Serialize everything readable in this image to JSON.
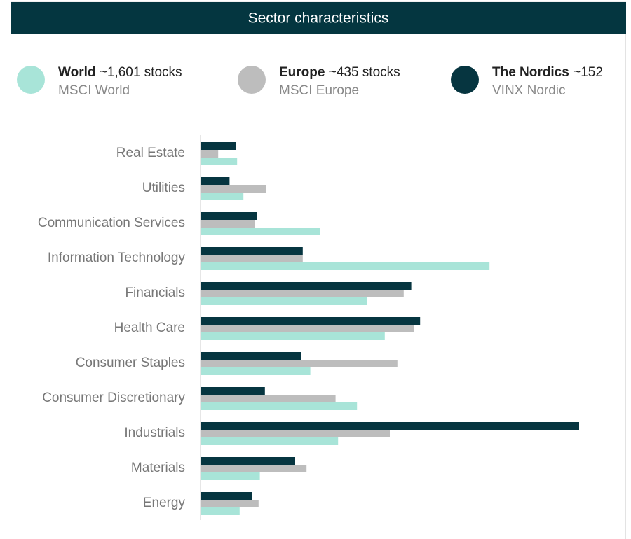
{
  "chart_data": {
    "type": "bar",
    "orientation": "horizontal",
    "title": "Sector characteristics",
    "categories": [
      "Real Estate",
      "Utilities",
      "Communication Services",
      "Information Technology",
      "Financials",
      "Health Care",
      "Consumer Staples",
      "Consumer Discretionary",
      "Industrials",
      "Materials",
      "Energy"
    ],
    "xlim": [
      0,
      30
    ],
    "series": [
      {
        "name": "The Nordics",
        "note": "~152",
        "index": "VINX Nordic",
        "color": "#063540",
        "values": [
          2.8,
          2.3,
          4.5,
          8.1,
          16.7,
          17.4,
          8.0,
          5.1,
          30.0,
          7.5,
          4.1
        ]
      },
      {
        "name": "Europe",
        "note": "~435 stocks",
        "index": "MSCI Europe",
        "color": "#bdbdbd",
        "values": [
          1.4,
          5.2,
          4.3,
          8.1,
          16.1,
          16.9,
          15.6,
          10.7,
          15.0,
          8.4,
          4.6
        ]
      },
      {
        "name": "World",
        "note": "~1,601 stocks",
        "index": "MSCI World",
        "color": "#a8e4d8",
        "values": [
          2.9,
          3.4,
          9.5,
          22.9,
          13.2,
          14.6,
          8.7,
          12.4,
          10.9,
          4.7,
          3.1
        ]
      }
    ]
  }
}
